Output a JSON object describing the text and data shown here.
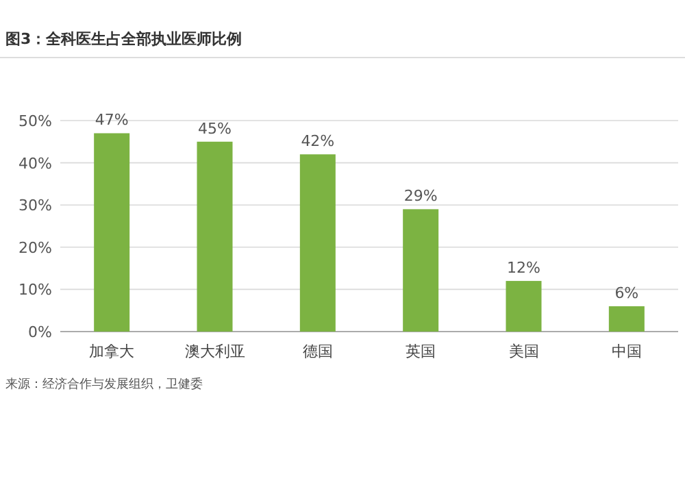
{
  "chart_data": {
    "type": "bar",
    "title": "图3：全科医生占全部执业医师比例",
    "categories": [
      "加拿大",
      "澳大利亚",
      "德国",
      "英国",
      "美国",
      "中国"
    ],
    "values": [
      47,
      45,
      42,
      29,
      12,
      6
    ],
    "value_labels": [
      "47%",
      "45%",
      "42%",
      "29%",
      "12%",
      "6%"
    ],
    "color": "#7cb342",
    "ylim": [
      0,
      50
    ],
    "yticks": [
      {
        "value": 0,
        "label": "0%"
      },
      {
        "value": 10,
        "label": "10%"
      },
      {
        "value": 20,
        "label": "20%"
      },
      {
        "value": 30,
        "label": "30%"
      },
      {
        "value": 40,
        "label": "40%"
      },
      {
        "value": 50,
        "label": "50%"
      }
    ],
    "grid": "y",
    "annotations": [
      "来源：经济合作与发展组织，卫健委"
    ]
  }
}
